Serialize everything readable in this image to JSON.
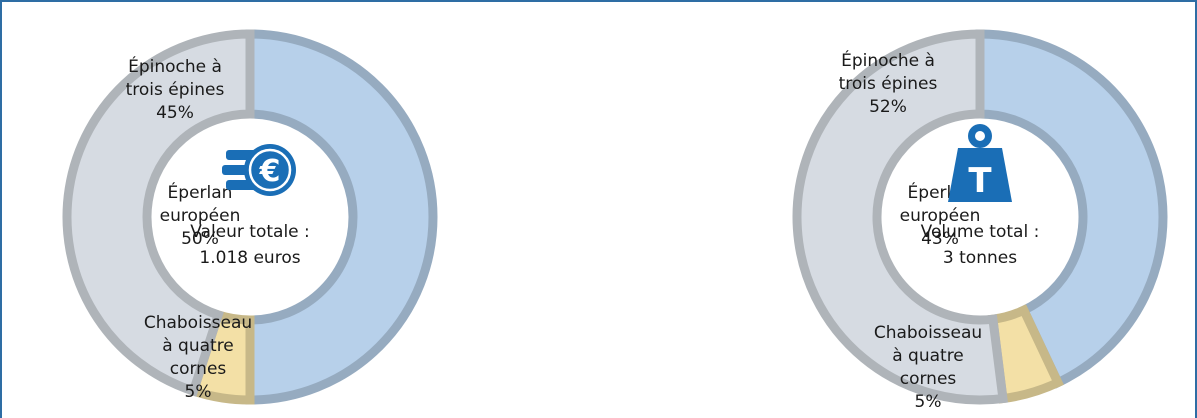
{
  "chart_data": [
    {
      "type": "pie",
      "center_text": [
        "Valeur totale :",
        "1.018 euros"
      ],
      "icon": "euro-coins-icon",
      "slices": [
        {
          "label": [
            "Éperlan",
            "européen"
          ],
          "value": 50,
          "value_text": "50%",
          "color": "#b7d0ea"
        },
        {
          "label": [
            "Chaboisseau",
            "à quatre",
            "cornes"
          ],
          "value": 5,
          "value_text": "5%",
          "color": "#f3e0a6"
        },
        {
          "label": [
            "Épinoche à",
            "trois épines"
          ],
          "value": 45,
          "value_text": "45%",
          "color": "#d6dbe2"
        }
      ]
    },
    {
      "type": "pie",
      "center_text": [
        "Volume total :",
        "3 tonnes"
      ],
      "icon": "weight-icon",
      "slices": [
        {
          "label": [
            "Éperlan",
            "européen"
          ],
          "value": 43,
          "value_text": "43%",
          "color": "#b7d0ea"
        },
        {
          "label": [
            "Chaboisseau",
            "à quatre",
            "cornes"
          ],
          "value": 5,
          "value_text": "5%",
          "color": "#f3e0a6"
        },
        {
          "label": [
            "Épinoche à",
            "trois épines"
          ],
          "value": 52,
          "value_text": "52%",
          "color": "#d6dbe2"
        }
      ]
    }
  ],
  "colors": {
    "frame": "#2e6da4",
    "icon": "#1a6eb6",
    "label": "#1a1a1a"
  }
}
